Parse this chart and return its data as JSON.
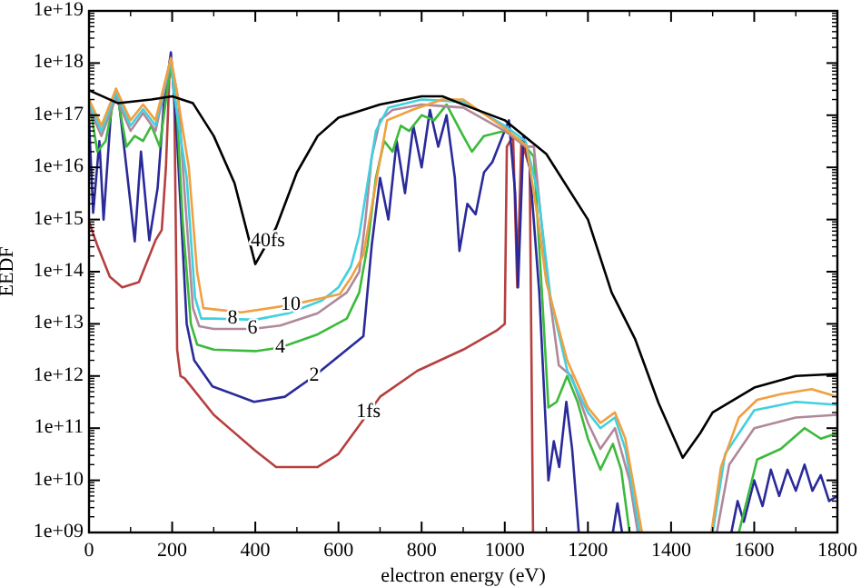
{
  "chart_data": {
    "type": "line",
    "xlabel": "electron energy (eV)",
    "ylabel": "EEDF",
    "log": "y",
    "grid": false,
    "marker": "none",
    "line_style": "solid",
    "xlim": [
      0,
      1800
    ],
    "xticks": [
      0,
      200,
      400,
      600,
      800,
      1000,
      1200,
      1400,
      1600,
      1800
    ],
    "ylim": [
      1000000000.0,
      1e+19
    ],
    "yticks": [
      {
        "value": 1000000000.0,
        "label": "1e+09"
      },
      {
        "value": 10000000000.0,
        "label": "1e+10"
      },
      {
        "value": 100000000000.0,
        "label": "1e+11"
      },
      {
        "value": 1000000000000.0,
        "label": "1e+12"
      },
      {
        "value": 10000000000000.0,
        "label": "1e+13"
      },
      {
        "value": 100000000000000.0,
        "label": "1e+14"
      },
      {
        "value": 1000000000000000.0,
        "label": "1e+15"
      },
      {
        "value": 1e+16,
        "label": "1e+16"
      },
      {
        "value": 1e+17,
        "label": "1e+17"
      },
      {
        "value": 1e+18,
        "label": "1e+18"
      },
      {
        "value": 1e+19,
        "label": "1e+19"
      }
    ],
    "series": [
      {
        "color": "#b5403f",
        "x": [
          0,
          20,
          50,
          80,
          120,
          160,
          175,
          185,
          195,
          205,
          212,
          220,
          230,
          300,
          400,
          450,
          550,
          600,
          700,
          790,
          900,
          980,
          1000,
          1005,
          1020,
          1030,
          1040,
          1060,
          1068
        ],
        "values": [
          900000000000000.0,
          320000000000000.0,
          80000000000000.0,
          50000000000000.0,
          63000000000000.0,
          400000000000000.0,
          630000000000000.0,
          1e+16,
          1.26e+18,
          3.2e+17,
          3200000000000.0,
          1000000000000.0,
          900000000000.0,
          180000000000.0,
          37000000000.0,
          18000000000.0,
          18000000000.0,
          32000000000.0,
          400000000000.0,
          1260000000000.0,
          3200000000000.0,
          7400000000000.0,
          10000000000000.0,
          2.5e+16,
          4e+16,
          50000000000000.0,
          3.2e+16,
          1e+16,
          1000000000.0
        ]
      },
      {
        "color": "#2a2a9a",
        "x": [
          0,
          10,
          25,
          35,
          55,
          70,
          90,
          110,
          125,
          145,
          165,
          180,
          197,
          212,
          235,
          253,
          297,
          397,
          471,
          542,
          660,
          680,
          700,
          720,
          740,
          760,
          780,
          800,
          820,
          840,
          860,
          880,
          891,
          910,
          930,
          950,
          970,
          990,
          1010,
          1025,
          1032,
          1045,
          1060,
          1083,
          1105,
          1118,
          1131,
          1148,
          1162,
          1178,
          1200,
          1260,
          1271,
          1282,
          1300,
          1545,
          1560,
          1575,
          1600,
          1620,
          1640,
          1660,
          1680,
          1700,
          1721,
          1740,
          1760,
          1780,
          1800
        ],
        "values": [
          8e+16,
          1350000000000000.0,
          3.2e+16,
          1000000000000000.0,
          2e+17,
          2.5e+17,
          1e+16,
          380000000000000.0,
          2e+16,
          400000000000000.0,
          4000000000000000.0,
          1.6e+17,
          1.6e+18,
          3.2e+16,
          10000000000000.0,
          2000000000000.0,
          630000000000.0,
          320000000000.0,
          400000000000.0,
          1000000000000.0,
          5800000000000.0,
          320000000000000.0,
          6300000000000000.0,
          1000000000000000.0,
          3.2e+16,
          3200000000000000.0,
          6.3e+16,
          1e+16,
          1.26e+17,
          2.5e+16,
          1e+17,
          6300000000000000.0,
          250000000000000.0,
          2000000000000000.0,
          1260000000000000.0,
          8000000000000000.0,
          1.26e+16,
          3.2e+16,
          8e+16,
          3200000000000000.0,
          50000000000000.0,
          4e+16,
          1e+16,
          40000000000000.0,
          10000000000.0,
          56000000000.0,
          18000000000.0,
          320000000000.0,
          40000000000.0,
          1000000000.0,
          null,
          1000000000.0,
          3600000000.0,
          1000000000.0,
          null,
          1000000000.0,
          4000000000.0,
          1600000000.0,
          10000000000.0,
          3200000000.0,
          16000000000.0,
          5000000000.0,
          16000000000.0,
          6300000000.0,
          20000000000.0,
          6300000000.0,
          12600000000.0,
          4000000000.0,
          5000000000.0
        ]
      },
      {
        "color": "#3cba3c",
        "x": [
          0,
          20,
          40,
          65,
          90,
          110,
          130,
          150,
          170,
          197,
          212,
          225,
          245,
          260,
          300,
          400,
          460,
          550,
          620,
          650,
          670,
          690,
          710,
          730,
          750,
          770,
          800,
          830,
          860,
          900,
          921,
          950,
          1000,
          1040,
          1070,
          1090,
          1105,
          1125,
          1150,
          1175,
          1200,
          1230,
          1260,
          1280,
          1300,
          1400,
          1563,
          1607,
          1664,
          1721,
          1760,
          1800
        ],
        "values": [
          2e+17,
          2e+16,
          3.2e+16,
          3.2e+17,
          2.5e+16,
          4e+16,
          3.2e+16,
          6.3e+16,
          2.5e+16,
          1e+18,
          1e+17,
          1000000000000000.0,
          10000000000000.0,
          4000000000000.0,
          3200000000000.0,
          3000000000000.0,
          3500000000000.0,
          6300000000000.0,
          12600000000000.0,
          40000000000000.0,
          320000000000000.0,
          6300000000000000.0,
          3.2e+16,
          2e+16,
          6.3e+16,
          5e+16,
          1e+17,
          8e+16,
          1.6e+17,
          4e+16,
          2e+16,
          4e+16,
          5e+16,
          3.2e+16,
          1.6e+16,
          32000000000000.0,
          250000000000.0,
          320000000000.0,
          1000000000000.0,
          320000000000.0,
          63000000000.0,
          16000000000.0,
          50000000000.0,
          16000000000.0,
          1000000000.0,
          null,
          1000000000.0,
          25000000000.0,
          40000000000.0,
          100000000000.0,
          63000000000.0,
          80000000000.0
        ]
      },
      {
        "color": "#b0889a",
        "x": [
          0,
          30,
          65,
          100,
          130,
          160,
          197,
          215,
          230,
          250,
          265,
          300,
          393,
          460,
          550,
          620,
          650,
          665,
          680,
          700,
          730,
          800,
          900,
          1000,
          1050,
          1070,
          1100,
          1130,
          1160,
          1200,
          1230,
          1265,
          1300,
          1320,
          1400,
          1510,
          1540,
          1600,
          1700,
          1800
        ],
        "values": [
          1.4e+17,
          4e+16,
          2.2e+17,
          5e+16,
          1.1e+17,
          5e+16,
          1.1e+18,
          2e+17,
          3200000000000000.0,
          20000000000000.0,
          9000000000000.0,
          8000000000000.0,
          8000000000000.0,
          9300000000000.0,
          16000000000000.0,
          40000000000000.0,
          100000000000000.0,
          1000000000000000.0,
          1.6e+16,
          8e+16,
          1.26e+17,
          1.6e+17,
          1.4e+17,
          5e+16,
          2.5e+16,
          2.5e+16,
          100000000000000.0,
          1600000000000.0,
          1000000000000.0,
          126000000000.0,
          40000000000.0,
          100000000000.0,
          10000000000.0,
          1000000000.0,
          null,
          1000000000.0,
          20000000000.0,
          100000000000.0,
          160000000000.0,
          180000000000.0
        ]
      },
      {
        "color": "#40d0e0",
        "x": [
          0,
          30,
          65,
          100,
          130,
          160,
          197,
          205,
          235,
          255,
          270,
          300,
          400,
          480,
          560,
          600,
          630,
          650,
          670,
          690,
          720,
          800,
          900,
          1000,
          1050,
          1080,
          1110,
          1150,
          1200,
          1230,
          1265,
          1290,
          1325,
          1400,
          1500,
          1530,
          1600,
          1700,
          1800
        ],
        "values": [
          1.7e+17,
          5e+16,
          2.7e+17,
          6.3e+16,
          1.3e+17,
          6.3e+16,
          1.2e+18,
          2.5e+17,
          6300000000000000.0,
          32000000000000.0,
          12600000000000.0,
          12600000000000.0,
          12000000000000.0,
          16000000000000.0,
          28000000000000.0,
          50000000000000.0,
          126000000000000.0,
          500000000000000.0,
          5000000000000000.0,
          5e+16,
          1.4e+17,
          2e+17,
          1.8e+17,
          6.3e+16,
          3.2e+16,
          3200000000000000.0,
          32000000000000.0,
          1300000000000.0,
          200000000000.0,
          100000000000.0,
          160000000000.0,
          40000000000.0,
          1000000000.0,
          null,
          1000000000.0,
          32000000000.0,
          220000000000.0,
          320000000000.0,
          280000000000.0
        ]
      },
      {
        "color": "#f0a040",
        "x": [
          0,
          30,
          65,
          100,
          130,
          160,
          197,
          210,
          240,
          260,
          275,
          367,
          485,
          603,
          630,
          660,
          690,
          717,
          777,
          850,
          900,
          1000,
          1052,
          1080,
          1100,
          1150,
          1200,
          1230,
          1265,
          1290,
          1330,
          1400,
          1497,
          1520,
          1563,
          1607,
          1664,
          1738,
          1800
        ],
        "values": [
          2e+17,
          6.3e+16,
          3.2e+17,
          8e+16,
          1.6e+17,
          8e+16,
          1.26e+18,
          3.2e+17,
          1e+16,
          100000000000000.0,
          20000000000000.0,
          16600000000000.0,
          23000000000000.0,
          37000000000000.0,
          76000000000000.0,
          210000000000000.0,
          5000000000000000.0,
          8e+16,
          1.26e+17,
          2e+17,
          2e+17,
          5.6e+16,
          2.6e+16,
          1000000000000000.0,
          63000000000000.0,
          2000000000000.0,
          250000000000.0,
          126000000000.0,
          200000000000.0,
          63000000000.0,
          1000000000.0,
          null,
          1000000000.0,
          18000000000.0,
          160000000000.0,
          350000000000.0,
          450000000000.0,
          560000000000.0,
          400000000000.0
        ]
      },
      {
        "color": "#000000",
        "x": [
          0,
          70,
          150,
          200,
          250,
          300,
          350,
          400,
          450,
          500,
          550,
          600,
          700,
          800,
          850,
          900,
          1000,
          1100,
          1200,
          1257,
          1314,
          1370,
          1428,
          1470,
          1500,
          1600,
          1700,
          1800
        ],
        "values": [
          3e+17,
          1.7e+17,
          2e+17,
          2.3e+17,
          1.7e+17,
          4e+16,
          5000000000000000.0,
          140000000000000.0,
          700000000000000.0,
          8000000000000000.0,
          4e+16,
          9e+16,
          1.6e+17,
          2.3e+17,
          2.3e+17,
          1.6e+17,
          8e+16,
          1.8e+16,
          1000000000000000.0,
          40000000000000.0,
          5000000000000.0,
          300000000000.0,
          27000000000.0,
          80000000000.0,
          200000000000.0,
          600000000000.0,
          1000000000000.0,
          1100000000000.0
        ]
      }
    ],
    "annotations": [
      {
        "text": "40fs",
        "x": 430,
        "y": 370000000000000.0
      },
      {
        "text": "10",
        "x": 485,
        "y": 23000000000000.0
      },
      {
        "text": "8",
        "x": 345,
        "y": 12300000000000.0
      },
      {
        "text": "6",
        "x": 393,
        "y": 8000000000000.0
      },
      {
        "text": "4",
        "x": 460,
        "y": 3500000000000.0
      },
      {
        "text": "2",
        "x": 542,
        "y": 1000000000000.0
      },
      {
        "text": "1fs",
        "x": 672,
        "y": 200000000000.0
      }
    ]
  }
}
